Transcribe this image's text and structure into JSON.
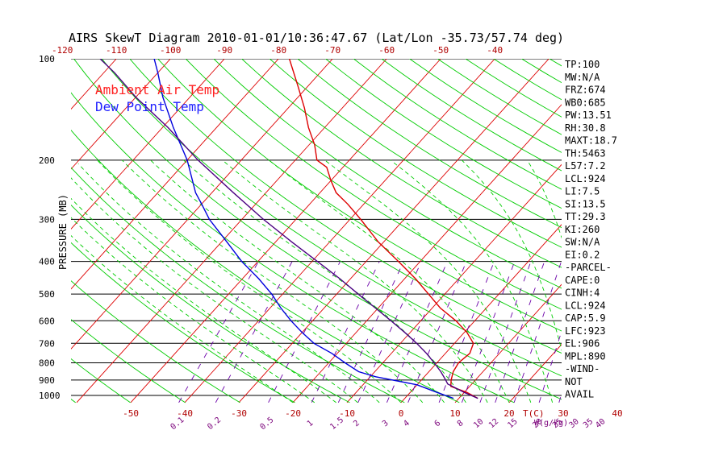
{
  "chart_data": {
    "type": "line",
    "title": "AIRS SkewT Diagram 2010-01-01/10:36:47.67 (Lat/Lon -35.73/57.74 deg)",
    "ylabel": "PRESSURE (MB)",
    "x_unit_label": "T(C)",
    "mixing_ratio_unit_label": "W(g/kg)",
    "y_scale": "log",
    "ylim": [
      1050,
      100
    ],
    "pressure_ticks": [
      100,
      200,
      300,
      400,
      500,
      600,
      700,
      800,
      900,
      1000
    ],
    "top_temp_ticks": [
      -120,
      -110,
      -100,
      -90,
      -80,
      -70,
      -60,
      -50,
      -40
    ],
    "bottom_temp_ticks": [
      -50,
      -40,
      -30,
      -20,
      -10,
      0,
      10,
      20,
      30,
      40
    ],
    "mixing_ratio_ticks": [
      "0.1",
      "0.2",
      "0.5",
      "1",
      "1.5",
      "2",
      "3",
      "4",
      "6",
      "8",
      "10",
      "12",
      "15",
      "20",
      "25",
      "30",
      "35",
      "40"
    ],
    "legend": [
      {
        "name": "Ambient Air Temp",
        "color": "#ff2020"
      },
      {
        "name": "Dew Point Temp",
        "color": "#2020ff"
      }
    ],
    "series": [
      {
        "name": "Ambient Air Temp",
        "color": "#dd0000",
        "points": [
          {
            "p": 1020,
            "t": 13.5
          },
          {
            "p": 980,
            "t": 10.5
          },
          {
            "p": 940,
            "t": 6.5
          },
          {
            "p": 900,
            "t": 5.5
          },
          {
            "p": 850,
            "t": 4.5
          },
          {
            "p": 800,
            "t": 4.0
          },
          {
            "p": 750,
            "t": 4.5
          },
          {
            "p": 700,
            "t": 3.5
          },
          {
            "p": 650,
            "t": 0.5
          },
          {
            "p": 600,
            "t": -3.5
          },
          {
            "p": 550,
            "t": -8.5
          },
          {
            "p": 500,
            "t": -13
          },
          {
            "p": 450,
            "t": -18
          },
          {
            "p": 400,
            "t": -24
          },
          {
            "p": 350,
            "t": -31
          },
          {
            "p": 300,
            "t": -38
          },
          {
            "p": 270,
            "t": -43
          },
          {
            "p": 250,
            "t": -47
          },
          {
            "p": 230,
            "t": -50
          },
          {
            "p": 210,
            "t": -53
          },
          {
            "p": 200,
            "t": -56
          },
          {
            "p": 180,
            "t": -59
          },
          {
            "p": 160,
            "t": -63
          },
          {
            "p": 140,
            "t": -67
          },
          {
            "p": 120,
            "t": -72
          },
          {
            "p": 100,
            "t": -78
          }
        ]
      },
      {
        "name": "Dew Point Temp",
        "color": "#0000dd",
        "points": [
          {
            "p": 1020,
            "t": 9
          },
          {
            "p": 980,
            "t": 5
          },
          {
            "p": 930,
            "t": 0
          },
          {
            "p": 880,
            "t": -9
          },
          {
            "p": 850,
            "t": -13
          },
          {
            "p": 800,
            "t": -17
          },
          {
            "p": 750,
            "t": -21
          },
          {
            "p": 700,
            "t": -26
          },
          {
            "p": 650,
            "t": -30
          },
          {
            "p": 600,
            "t": -34
          },
          {
            "p": 550,
            "t": -38
          },
          {
            "p": 500,
            "t": -42
          },
          {
            "p": 450,
            "t": -47
          },
          {
            "p": 400,
            "t": -53
          },
          {
            "p": 350,
            "t": -59
          },
          {
            "p": 300,
            "t": -66
          },
          {
            "p": 270,
            "t": -70
          },
          {
            "p": 250,
            "t": -73
          },
          {
            "p": 200,
            "t": -80
          },
          {
            "p": 160,
            "t": -88
          },
          {
            "p": 130,
            "t": -95
          },
          {
            "p": 110,
            "t": -100
          },
          {
            "p": 100,
            "t": -103
          }
        ]
      },
      {
        "name": "Parcel",
        "color": "#4b0082",
        "points": [
          {
            "p": 1020,
            "t": 13.5
          },
          {
            "p": 980,
            "t": 10
          },
          {
            "p": 924,
            "t": 5.5
          },
          {
            "p": 900,
            "t": 4.5
          },
          {
            "p": 850,
            "t": 2.2
          },
          {
            "p": 800,
            "t": -0.5
          },
          {
            "p": 750,
            "t": -3.5
          },
          {
            "p": 700,
            "t": -7
          },
          {
            "p": 650,
            "t": -11
          },
          {
            "p": 600,
            "t": -15.5
          },
          {
            "p": 550,
            "t": -20.5
          },
          {
            "p": 500,
            "t": -26
          },
          {
            "p": 450,
            "t": -32
          },
          {
            "p": 400,
            "t": -39
          },
          {
            "p": 350,
            "t": -47
          },
          {
            "p": 300,
            "t": -56
          },
          {
            "p": 250,
            "t": -66
          },
          {
            "p": 200,
            "t": -78
          },
          {
            "p": 160,
            "t": -89
          },
          {
            "p": 130,
            "t": -100
          },
          {
            "p": 110,
            "t": -108
          },
          {
            "p": 100,
            "t": -113
          }
        ]
      }
    ],
    "stats": [
      "TP:100",
      "MW:N/A",
      "FRZ:674",
      "WB0:685",
      "PW:13.51",
      "RH:30.8",
      "MAXT:18.7",
      "TH:5463",
      "L57:7.2",
      "LCL:924",
      "LI:7.5",
      "SI:13.5",
      "TT:29.3",
      "KI:260",
      "SW:N/A",
      "EI:0.2",
      "-PARCEL-",
      "CAPE:0",
      "CINH:4",
      "LCL:924",
      "CAP:5.9",
      "LFC:923",
      "EL:906",
      "MPL:890",
      "-WIND-",
      "NOT",
      "AVAIL"
    ],
    "colors": {
      "isotherm": "#dd0000",
      "dry_adiabat": "#00cc00",
      "moist_adiabat": "#00cc00",
      "mixing_ratio": "#6a00a8",
      "isobar": "#000000"
    }
  }
}
